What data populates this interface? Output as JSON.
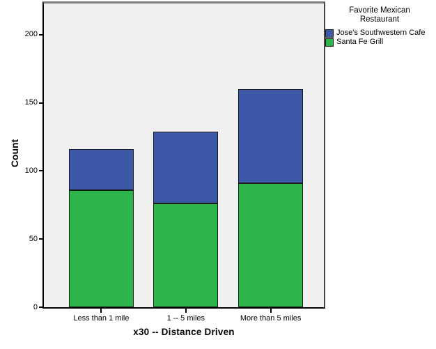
{
  "chart_data": {
    "type": "bar",
    "stacked": true,
    "title": "",
    "xlabel": "x30 -- Distance Driven",
    "ylabel": "Count",
    "ylim": [
      0,
      223
    ],
    "yticks": [
      0,
      50,
      100,
      150,
      200
    ],
    "grid": false,
    "legend_title": "Favorite Mexican Restaurant",
    "legend_position": "top-right",
    "categories": [
      "Less than 1 mile",
      "1 -- 5 miles",
      "More than 5 miles"
    ],
    "series": [
      {
        "name": "Santa Fe Grill",
        "color": "#2DB44A",
        "values": [
          86,
          76,
          91
        ]
      },
      {
        "name": "Jose's Southwestern Cafe",
        "color": "#3E58A8",
        "values": [
          30,
          53,
          69
        ]
      }
    ],
    "stack_totals": [
      116,
      129,
      160
    ]
  },
  "colors": {
    "plot_background": "#F0F0F0",
    "frame_gray": "#7D7D7D",
    "axis_black": "#000000",
    "bar_border": "#1A1A1A",
    "series_green": "#2DB44A",
    "series_blue": "#3E58A8"
  }
}
